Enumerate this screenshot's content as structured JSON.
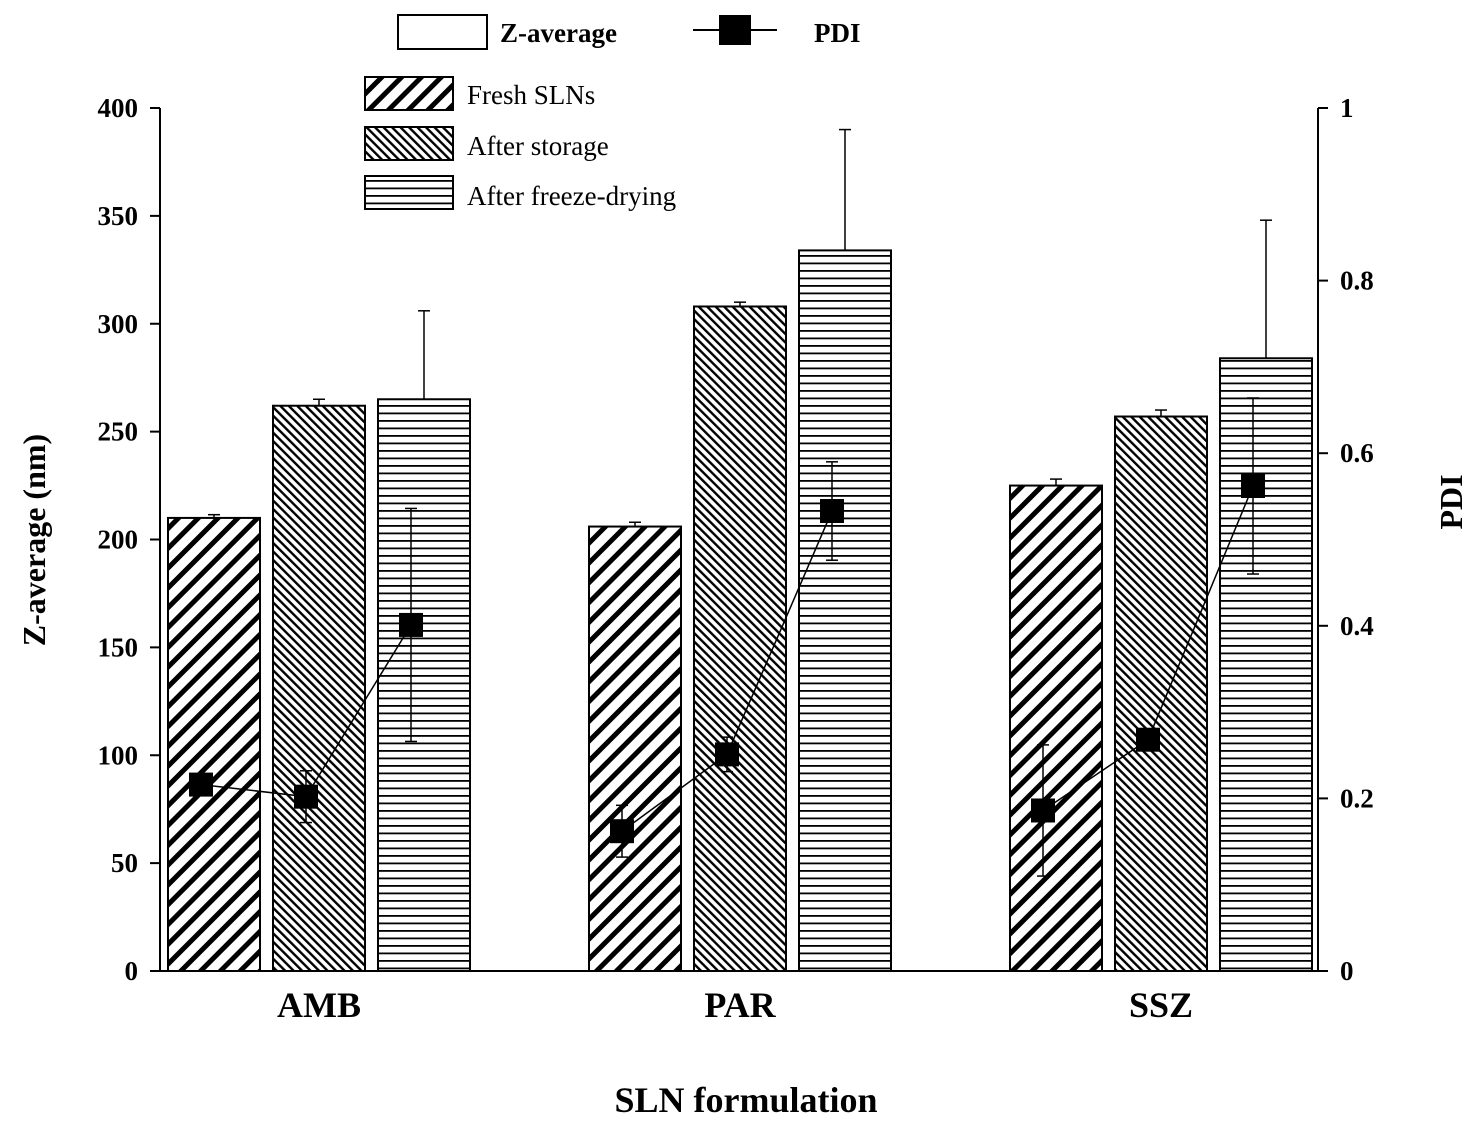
{
  "chart_data": {
    "type": "bar",
    "xlabel": "SLN formulation",
    "ylabel": "Z-average  (nm)",
    "y2label": "PDI",
    "categories": [
      "AMB",
      "PAR",
      "SSZ"
    ],
    "ylim": [
      0,
      400
    ],
    "yticks": [
      0,
      50,
      100,
      150,
      200,
      250,
      300,
      350,
      400
    ],
    "y2lim": [
      0,
      1
    ],
    "y2ticks": [
      "0",
      "0.2",
      "0.4",
      "0.6",
      "0.8",
      "1"
    ],
    "legend_top": {
      "bar_label": "Z-average",
      "line_label": "PDI"
    },
    "series": [
      {
        "name": "Fresh SLNs",
        "pattern": "diag-wide",
        "values": [
          210,
          206,
          225
        ],
        "errors": [
          1.5,
          2,
          3
        ]
      },
      {
        "name": "After storage",
        "pattern": "diag-dense",
        "values": [
          262,
          308,
          257
        ],
        "errors": [
          3,
          2,
          3
        ]
      },
      {
        "name": "After freeze-drying",
        "pattern": "horizontal",
        "values": [
          265,
          334,
          284
        ],
        "errors": [
          41,
          56,
          64
        ]
      }
    ],
    "pdi": {
      "name": "PDI",
      "values": [
        [
          0.216,
          0.202,
          0.401
        ],
        [
          0.162,
          0.251,
          0.533
        ],
        [
          0.186,
          0.268,
          0.562
        ]
      ],
      "errors": [
        [
          0.005,
          0.03,
          0.135
        ],
        [
          0.03,
          0.02,
          0.057
        ],
        [
          0.076,
          0.01,
          0.102
        ]
      ]
    }
  }
}
